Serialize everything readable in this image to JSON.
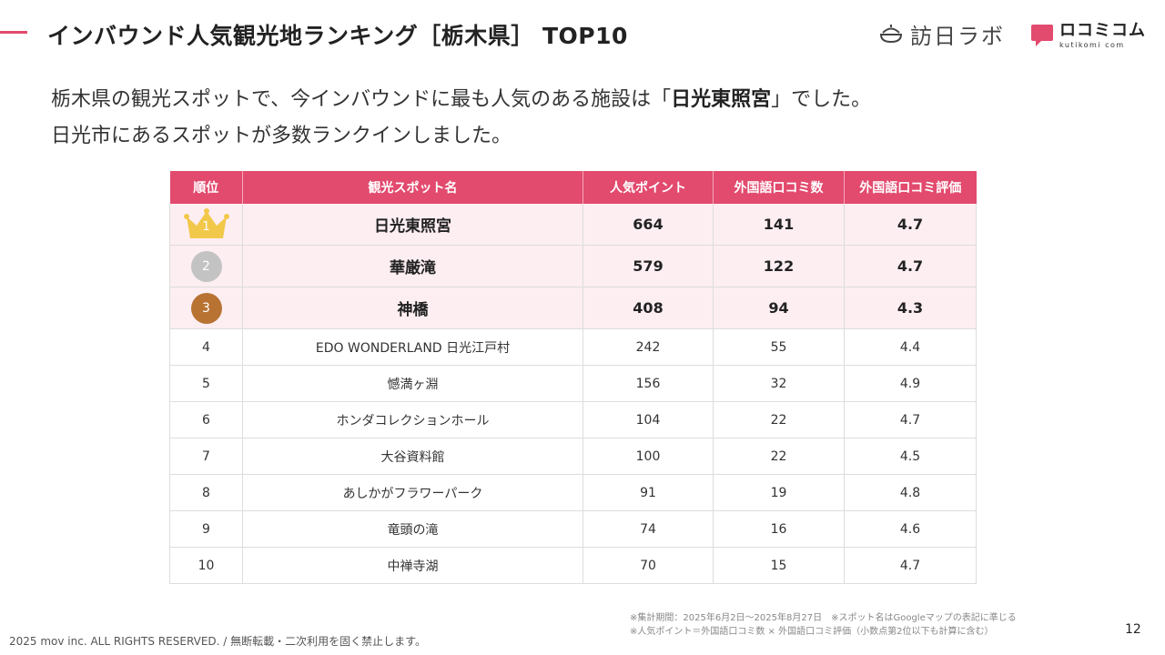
{
  "header": {
    "title": "インバウンド人気観光地ランキング［栃木県］ TOP10",
    "logos": [
      {
        "name": "訪日ラボ",
        "icon": "bowl-icon"
      },
      {
        "name": "ロコミコム",
        "subtitle": "kutikomi com",
        "icon": "chat-bubble-icon"
      }
    ],
    "accent_color": "#e24a6e"
  },
  "intro": {
    "line1_prefix": "栃木県の観光スポットで、今インバウンドに最も人気のある施設は「",
    "line1_highlight": "日光東照宮",
    "line1_suffix": "」でした。",
    "line2": "日光市にあるスポットが多数ランクインしました。"
  },
  "table": {
    "columns": [
      "順位",
      "観光スポット名",
      "人気ポイント",
      "外国語口コミ数",
      "外国語口コミ評価"
    ],
    "rows": [
      {
        "rank": "1",
        "spot": "日光東照宮",
        "points": "664",
        "reviews": "141",
        "rating": "4.7"
      },
      {
        "rank": "2",
        "spot": "華厳滝",
        "points": "579",
        "reviews": "122",
        "rating": "4.7"
      },
      {
        "rank": "3",
        "spot": "神橋",
        "points": "408",
        "reviews": "94",
        "rating": "4.3"
      },
      {
        "rank": "4",
        "spot": "EDO WONDERLAND 日光江戸村",
        "points": "242",
        "reviews": "55",
        "rating": "4.4"
      },
      {
        "rank": "5",
        "spot": "憾満ヶ淵",
        "points": "156",
        "reviews": "32",
        "rating": "4.9"
      },
      {
        "rank": "6",
        "spot": "ホンダコレクションホール",
        "points": "104",
        "reviews": "22",
        "rating": "4.7"
      },
      {
        "rank": "7",
        "spot": "大谷資料館",
        "points": "100",
        "reviews": "22",
        "rating": "4.5"
      },
      {
        "rank": "8",
        "spot": "あしかがフラワーパーク",
        "points": "91",
        "reviews": "19",
        "rating": "4.8"
      },
      {
        "rank": "9",
        "spot": "竜頭の滝",
        "points": "74",
        "reviews": "16",
        "rating": "4.6"
      },
      {
        "rank": "10",
        "spot": "中禅寺湖",
        "points": "70",
        "reviews": "15",
        "rating": "4.7"
      }
    ],
    "medal_colors": {
      "gold": "#f2c84b",
      "silver": "#c3c3c3",
      "bronze": "#b87333"
    }
  },
  "notes": [
    "※集計期間：2025年6月2日〜2025年8月27日　※スポット名はGoogleマップの表記に準じる",
    "※人気ポイント＝外国語口コミ数 × 外国語口コミ評価（小数点第2位以下も計算に含む）"
  ],
  "footer": "2025 mov inc. ALL RIGHTS RESERVED. / 無断転載・二次利用を固く禁止します。",
  "page_number": "12"
}
